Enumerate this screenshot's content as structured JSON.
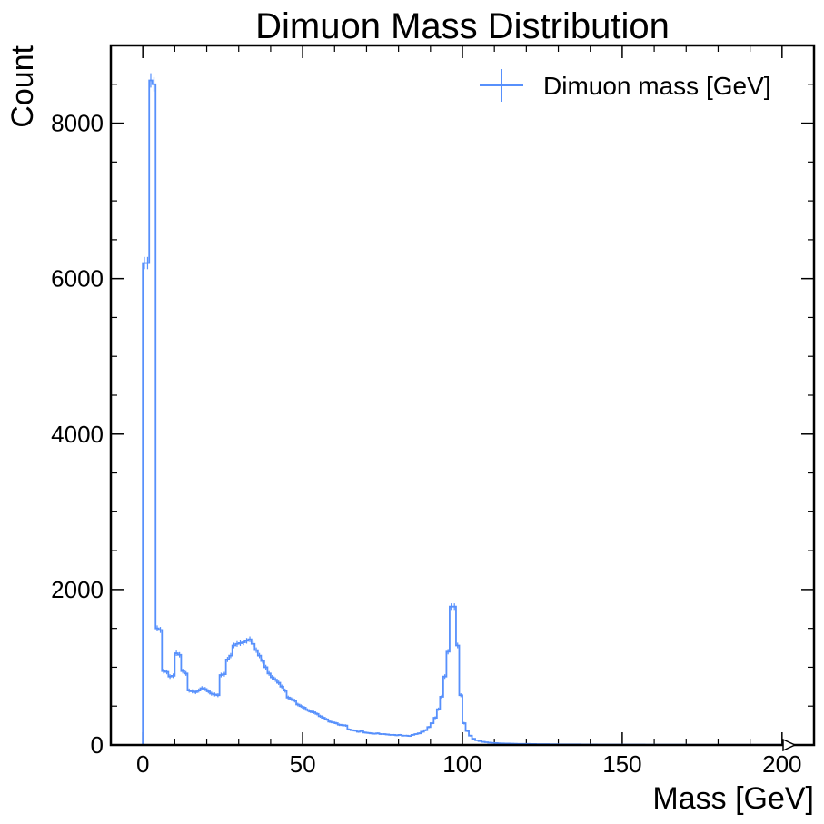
{
  "chart_data": {
    "type": "histogram",
    "title": "Dimuon Mass Distribution",
    "xlabel": "Mass [GeV]",
    "ylabel": "Count",
    "xlim": [
      -10,
      210
    ],
    "ylim": [
      0,
      9000
    ],
    "xticks": [
      0,
      50,
      100,
      150,
      200
    ],
    "yticks": [
      0,
      2000,
      4000,
      6000,
      8000
    ],
    "grid": false,
    "legend_position": "top-right",
    "bin_width": 1,
    "series": [
      {
        "name": "Dimuon mass [GeV]",
        "color": "#5790fc",
        "bin_start": 0,
        "counts": [
          6200,
          6200,
          8550,
          8500,
          1500,
          1480,
          950,
          940,
          880,
          890,
          1180,
          1160,
          950,
          920,
          700,
          690,
          680,
          700,
          730,
          720,
          690,
          660,
          650,
          640,
          900,
          910,
          1100,
          1150,
          1280,
          1300,
          1310,
          1320,
          1340,
          1360,
          1300,
          1220,
          1150,
          1080,
          1000,
          920,
          870,
          840,
          800,
          750,
          700,
          610,
          590,
          570,
          520,
          500,
          480,
          450,
          430,
          420,
          400,
          370,
          350,
          330,
          300,
          290,
          280,
          260,
          255,
          250,
          200,
          190,
          185,
          170,
          180,
          160,
          155,
          150,
          145,
          150,
          140,
          140,
          135,
          130,
          130,
          125,
          130,
          120,
          120,
          115,
          130,
          140,
          150,
          170,
          190,
          230,
          280,
          350,
          460,
          620,
          880,
          1200,
          1780,
          1780,
          1280,
          640,
          280,
          180,
          120,
          80,
          60,
          50,
          40,
          35,
          30,
          26,
          24,
          22,
          20,
          19,
          18,
          17,
          16,
          15,
          15,
          14,
          14,
          13,
          13,
          12,
          12,
          11,
          11,
          10,
          10,
          10,
          9,
          9,
          9,
          8,
          8,
          8,
          8,
          7,
          7,
          7,
          7,
          7,
          6,
          6,
          6,
          6,
          6,
          6,
          5,
          5,
          5,
          5,
          5,
          5,
          5,
          5,
          5,
          4,
          4,
          4,
          4,
          4,
          4,
          4,
          4,
          4,
          4,
          4,
          4,
          4,
          3,
          3,
          3,
          3,
          3,
          3,
          3,
          3,
          3,
          3,
          3,
          3,
          3,
          3,
          3,
          3,
          3,
          3,
          3,
          3,
          2,
          2,
          2,
          2,
          2,
          2,
          2,
          2,
          2,
          2
        ]
      }
    ]
  }
}
